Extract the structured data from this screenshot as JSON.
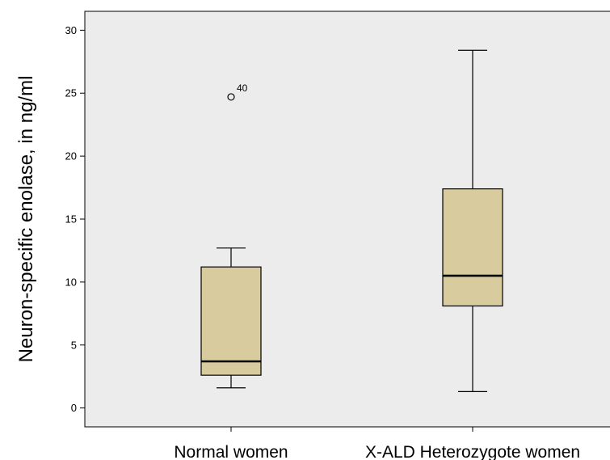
{
  "chart_data": {
    "type": "boxplot",
    "title": "",
    "xlabel": "",
    "ylabel": "Neuron-specific enolase, in ng/ml",
    "ylim": [
      -1.5,
      31.5
    ],
    "yticks": [
      0,
      5,
      10,
      15,
      20,
      25,
      30
    ],
    "grid": false,
    "categories": [
      "Normal women",
      "X-ALD Heterozygote women"
    ],
    "boxes": [
      {
        "category": "Normal women",
        "whisker_low": 1.6,
        "q1": 2.6,
        "median": 3.7,
        "q3": 11.2,
        "whisker_high": 12.7,
        "outliers": [
          {
            "value": 24.7,
            "label": "40"
          }
        ]
      },
      {
        "category": "X-ALD Heterozygote women",
        "whisker_low": 1.3,
        "q1": 8.1,
        "median": 10.5,
        "q3": 17.4,
        "whisker_high": 28.4,
        "outliers": []
      }
    ],
    "colors": {
      "plot_background": "#ececec",
      "box_fill": "#d8cb9d",
      "stroke": "#000000"
    }
  }
}
